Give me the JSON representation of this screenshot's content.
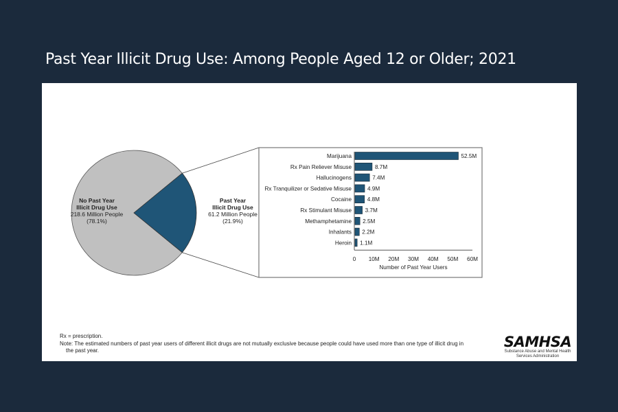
{
  "page": {
    "title": "Past Year Illicit Drug Use: Among People Aged 12 or Older; 2021",
    "background_color": "#1b2a3c"
  },
  "footnotes": {
    "rx": "Rx = prescription.",
    "note_line1": "Note: The estimated numbers of past year users of different illicit drugs are not mutually exclusive because people could have used more than one type of illicit drug in",
    "note_line2": "the past year."
  },
  "logo": {
    "name": "SAMHSA",
    "sub_line1": "Substance Abuse and Mental Health",
    "sub_line2": "Services Administration"
  },
  "chart_data": [
    {
      "type": "pie",
      "slices": [
        {
          "label_line1": "No Past Year",
          "label_line2": "Illicit Drug Use",
          "value_text": "218.6 Million People",
          "pct_text": "(78.1%)",
          "value": 218.6,
          "percent": 78.1,
          "color": "#c0c0c0"
        },
        {
          "label_line1": "Past Year",
          "label_line2": "Illicit Drug Use",
          "value_text": "61.2 Million People",
          "pct_text": "(21.9%)",
          "value": 61.2,
          "percent": 21.9,
          "color": "#1f5577"
        }
      ],
      "exploded_slice": "Past Year Illicit Drug Use"
    },
    {
      "type": "bar",
      "orientation": "horizontal",
      "categories": [
        "Marijuana",
        "Rx Pain Reliever Misuse",
        "Hallucinogens",
        "Rx Tranquilizer or Sedative Misuse",
        "Cocaine",
        "Rx Stimulant Misuse",
        "Methamphetamine",
        "Inhalants",
        "Heroin"
      ],
      "values": [
        52.5,
        8.7,
        7.4,
        4.9,
        4.8,
        3.7,
        2.5,
        2.2,
        1.1
      ],
      "value_labels": [
        "52.5M",
        "8.7M",
        "7.4M",
        "4.9M",
        "4.8M",
        "3.7M",
        "2.5M",
        "2.2M",
        "1.1M"
      ],
      "xlabel": "Number of Past Year Users",
      "xlim": [
        0,
        60
      ],
      "xticks": [
        0,
        10,
        20,
        30,
        40,
        50,
        60
      ],
      "xtick_labels": [
        "0",
        "10M",
        "20M",
        "30M",
        "40M",
        "50M",
        "60M"
      ],
      "bar_color": "#1f5577",
      "grid": false
    }
  ]
}
